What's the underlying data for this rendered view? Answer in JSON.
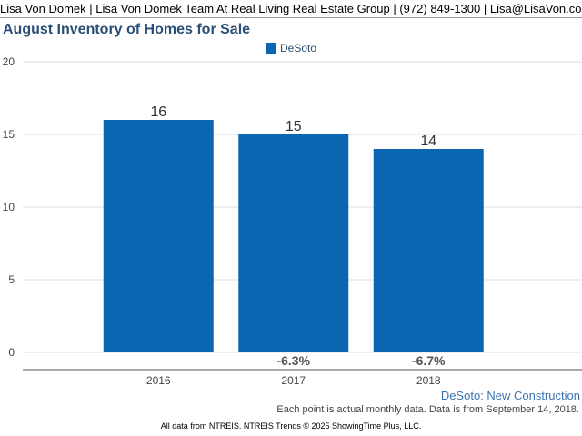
{
  "header": {
    "text": "Lisa Von Domek | Lisa Von Domek Team At Real Living Real Estate Group | (972) 849-1300 | Lisa@LisaVon.com"
  },
  "chart_data": {
    "type": "bar",
    "title": "August Inventory of Homes for Sale",
    "categories": [
      "2016",
      "2017",
      "2018"
    ],
    "series": [
      {
        "name": "DeSoto",
        "values": [
          16,
          15,
          14
        ],
        "color": "#0a66b0"
      }
    ],
    "value_labels": [
      "16",
      "15",
      "14"
    ],
    "change_labels": [
      "",
      "-6.3%",
      "-6.7%"
    ],
    "ylim": [
      0,
      20
    ],
    "yticks": [
      0,
      5,
      10,
      15,
      20
    ],
    "grid": true,
    "legend": "top-center",
    "xlabel": "",
    "ylabel": ""
  },
  "footer": {
    "series_label": "DeSoto: New Construction",
    "note": "Each point is actual monthly data. Data is from September 14, 2018.",
    "source": "All data from NTREIS. NTREIS Trends © 2025 ShowingTime Plus, LLC."
  }
}
